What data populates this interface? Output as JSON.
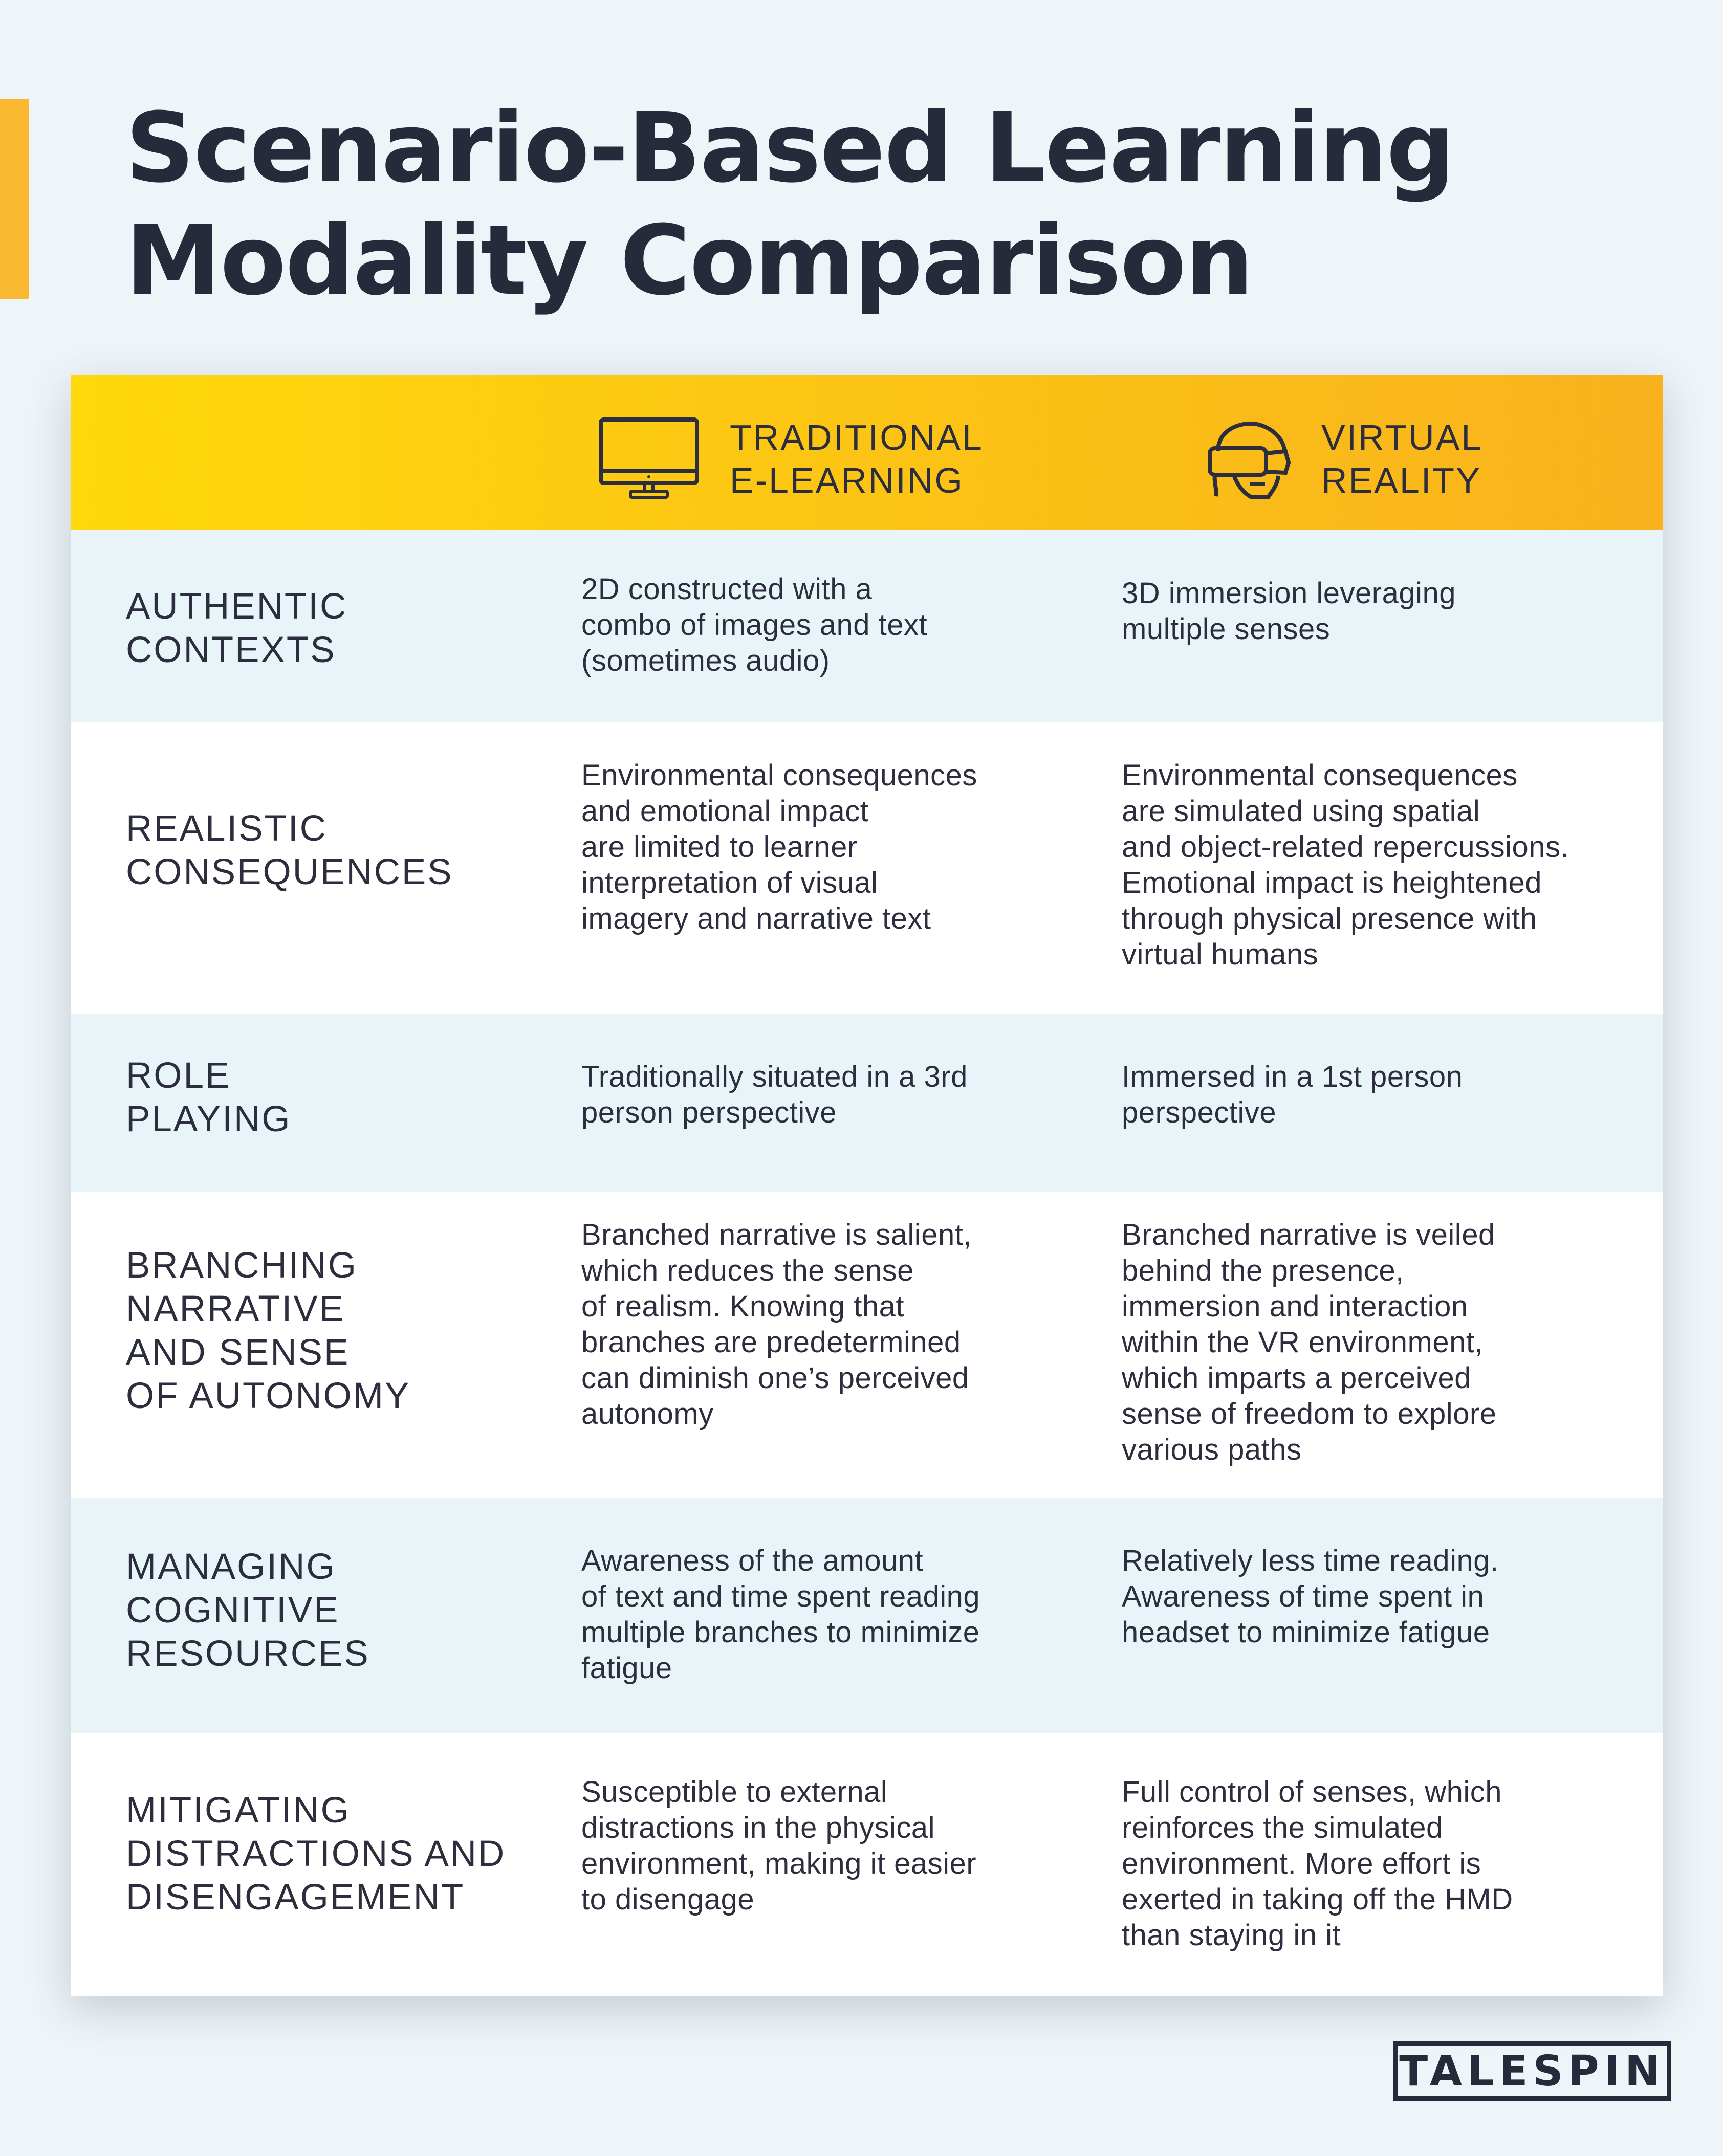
{
  "title": {
    "line1": "Scenario-Based Learning",
    "line2": "Modality Comparison"
  },
  "colors": {
    "accent": "#fbb933",
    "header_start": "#ffd90b",
    "header_end": "#f9b21d",
    "row_shade": "#e9f4f8",
    "text": "#262a3b"
  },
  "columns": {
    "traditional": {
      "icon": "monitor-icon",
      "line1": "TRADITIONAL",
      "line2": "E-LEARNING"
    },
    "vr": {
      "icon": "vr-headset-icon",
      "line1": "VIRTUAL",
      "line2": "REALITY"
    }
  },
  "rows": [
    {
      "label": [
        "AUTHENTIC",
        "CONTEXTS"
      ],
      "traditional": [
        "2D constructed with a",
        "combo of images and text",
        "(sometimes audio)"
      ],
      "vr": [
        "3D immersion leveraging",
        "multiple senses"
      ]
    },
    {
      "label": [
        "REALISTIC",
        "CONSEQUENCES"
      ],
      "traditional": [
        "Environmental consequences",
        "and emotional impact",
        "are limited to learner",
        "interpretation of visual",
        "imagery and narrative text"
      ],
      "vr": [
        "Environmental consequences",
        "are simulated using spatial",
        "and object-related repercussions.",
        "Emotional impact is heightened",
        "through physical presence with",
        "virtual humans"
      ]
    },
    {
      "label": [
        "ROLE",
        "PLAYING"
      ],
      "traditional": [
        "Traditionally situated in a 3rd",
        "person perspective"
      ],
      "vr": [
        "Immersed in a 1st person",
        "perspective"
      ]
    },
    {
      "label": [
        "BRANCHING",
        "NARRATIVE",
        "AND SENSE",
        "OF AUTONOMY"
      ],
      "traditional": [
        "Branched narrative is salient,",
        "which reduces the sense",
        "of realism. Knowing that",
        "branches are predetermined",
        "can diminish one’s perceived",
        "autonomy"
      ],
      "vr": [
        "Branched narrative is veiled",
        "behind the presence,",
        "immersion and interaction",
        "within the VR environment,",
        "which imparts a perceived",
        "sense of freedom to explore",
        "various paths"
      ]
    },
    {
      "label": [
        "MANAGING",
        "COGNITIVE",
        "RESOURCES"
      ],
      "traditional": [
        "Awareness of the amount",
        "of text and time spent reading",
        "multiple branches to minimize",
        "fatigue"
      ],
      "vr": [
        "Relatively less time reading.",
        "Awareness of time spent in",
        "headset to minimize fatigue"
      ]
    },
    {
      "label": [
        "MITIGATING",
        "DISTRACTIONS AND",
        "DISENGAGEMENT"
      ],
      "traditional": [
        "Susceptible to external",
        "distractions in the physical",
        "environment, making it easier",
        "to disengage"
      ],
      "vr": [
        "Full control of senses, which",
        "reinforces the simulated",
        "environment. More effort is",
        "exerted in taking off the HMD",
        "than staying in it"
      ]
    }
  ],
  "logo": {
    "text": "TALESPIN"
  }
}
